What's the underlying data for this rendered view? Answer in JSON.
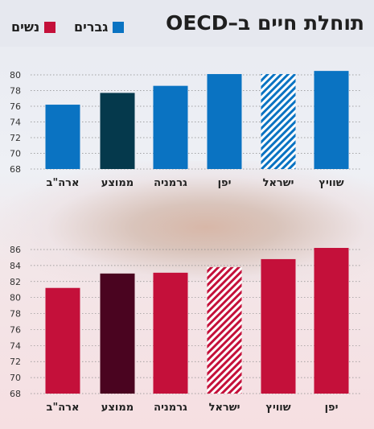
{
  "header": {
    "title": "תוחלת חיים ב–OECD",
    "legend": [
      {
        "label": "גברים",
        "color": "#0a73c2"
      },
      {
        "label": "נשים",
        "color": "#c4103a"
      }
    ]
  },
  "chart_data": [
    {
      "type": "bar",
      "series_name": "גברים",
      "categories": [
        "ארה\"ב",
        "ממוצע",
        "גרמניה",
        "יפן",
        "ישראל",
        "שוויץ"
      ],
      "values": [
        76.2,
        77.7,
        78.6,
        80.1,
        80.1,
        80.5
      ],
      "ylim": [
        68,
        80
      ],
      "yticks": [
        68,
        70,
        72,
        74,
        76,
        78,
        80
      ],
      "colors": [
        "#0a73c2",
        "#05394c",
        "#0a73c2",
        "#0a73c2",
        "hatch",
        "#0a73c2"
      ],
      "grid": true
    },
    {
      "type": "bar",
      "series_name": "נשים",
      "categories": [
        "ארה\"ב",
        "ממוצע",
        "גרמניה",
        "ישראל",
        "שוויץ",
        "יפן"
      ],
      "values": [
        81.2,
        83.0,
        83.1,
        83.8,
        84.8,
        86.2
      ],
      "ylim": [
        68,
        86
      ],
      "yticks": [
        68,
        70,
        72,
        74,
        76,
        78,
        80,
        82,
        84,
        86
      ],
      "colors": [
        "#c4103a",
        "#4a0420",
        "#c4103a",
        "hatch",
        "#c4103a",
        "#c4103a"
      ],
      "grid": true
    }
  ]
}
